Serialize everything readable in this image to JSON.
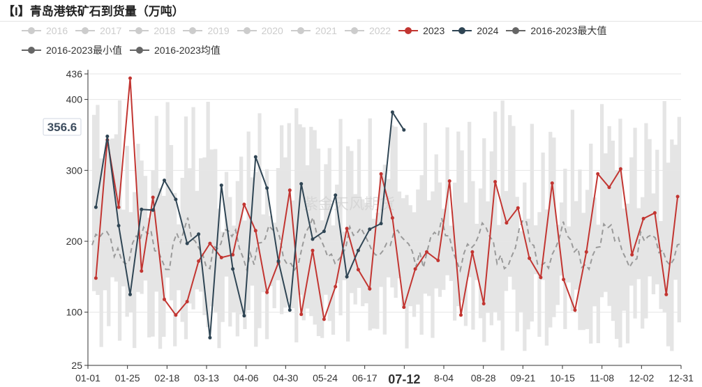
{
  "title": "【I】青岛港铁矿石到货量（万吨）",
  "legend": [
    {
      "name": "2016",
      "color": "#cccccc",
      "active": false
    },
    {
      "name": "2017",
      "color": "#cccccc",
      "active": false
    },
    {
      "name": "2018",
      "color": "#cccccc",
      "active": false
    },
    {
      "name": "2019",
      "color": "#cccccc",
      "active": false
    },
    {
      "name": "2020",
      "color": "#cccccc",
      "active": false
    },
    {
      "name": "2021",
      "color": "#cccccc",
      "active": false
    },
    {
      "name": "2022",
      "color": "#cccccc",
      "active": false
    },
    {
      "name": "2023",
      "color": "#c23531",
      "active": true
    },
    {
      "name": "2024",
      "color": "#2f4554",
      "active": true
    },
    {
      "name": "2016-2023最大值",
      "color": "#666666",
      "active": true
    },
    {
      "name": "2016-2023最小值",
      "color": "#666666",
      "active": true
    },
    {
      "name": "2016-2023均值",
      "color": "#666666",
      "active": true
    }
  ],
  "watermark": "紫金天风期货",
  "cursor": {
    "y_value": "356.6",
    "x_label": "07-12"
  },
  "chart_data": {
    "type": "line",
    "x_ticks": [
      "01-01",
      "01-25",
      "02-18",
      "03-13",
      "04-06",
      "04-30",
      "05-24",
      "06-17",
      "07-12",
      "8-04",
      "08-28",
      "09-21",
      "10-15",
      "11-08",
      "12-02",
      "12-31"
    ],
    "y_ticks": [
      25,
      100,
      200,
      300,
      400,
      436
    ],
    "ylim": [
      25,
      436
    ],
    "band_color": "#e5e5e5",
    "series": [
      {
        "name": "2023",
        "color": "#c23531",
        "x": [
          1,
          2,
          3,
          4,
          5,
          6,
          7,
          8,
          9,
          10,
          11,
          12,
          13,
          14,
          15,
          16,
          17,
          18,
          19,
          20,
          21,
          22,
          23,
          24,
          25,
          26,
          27,
          28,
          29,
          30,
          31,
          32,
          33,
          34,
          35,
          36,
          37,
          38,
          39,
          40,
          41,
          42,
          43,
          44,
          45,
          46,
          47,
          48,
          49,
          50,
          51,
          52
        ],
        "values": [
          148,
          343,
          248,
          430,
          158,
          262,
          118,
          96,
          115,
          172,
          197,
          177,
          181,
          252,
          215,
          128,
          170,
          272,
          97,
          187,
          90,
          136,
          218,
          160,
          133,
          295,
          233,
          107,
          161,
          185,
          173,
          285,
          96,
          185,
          112,
          284,
          226,
          247,
          176,
          149,
          282,
          146,
          103,
          185,
          295,
          276,
          302,
          181,
          232,
          240,
          125,
          263
        ]
      },
      {
        "name": "2024",
        "color": "#2f4554",
        "x": [
          1,
          2,
          3,
          4,
          5,
          6,
          7,
          8,
          9,
          10,
          11,
          12,
          13,
          14,
          15,
          16,
          17,
          18,
          19,
          20,
          21,
          22,
          23,
          24,
          25,
          26,
          27,
          28
        ],
        "values": [
          248,
          348,
          222,
          125,
          245,
          244,
          286,
          259,
          197,
          210,
          64,
          279,
          161,
          95,
          319,
          275,
          172,
          103,
          281,
          203,
          214,
          265,
          150,
          187,
          217,
          225,
          382,
          357
        ]
      },
      {
        "name": "2016-2023均值",
        "color": "#9a9a9a",
        "dashed": true
      },
      {
        "name": "2016-2023最大值",
        "color": "#e5e5e5"
      },
      {
        "name": "2016-2023最小值",
        "color": "#e5e5e5"
      }
    ]
  }
}
